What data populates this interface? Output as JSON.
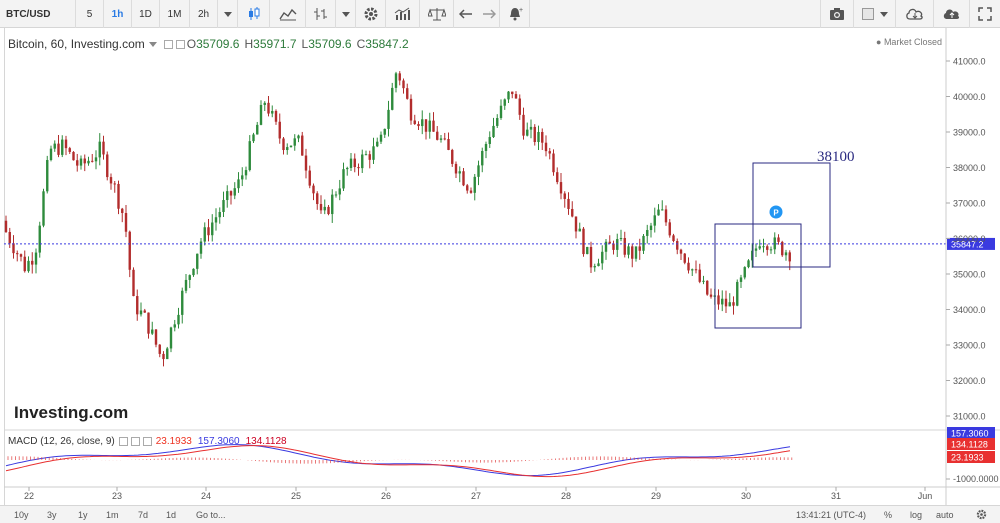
{
  "toolbar": {
    "symbol": "BTC/USD",
    "timeframes": [
      "5",
      "1h",
      "1D",
      "1M",
      "2h"
    ],
    "active_timeframe": "1h",
    "icons": [
      "candles-icon",
      "area-chart-icon",
      "indicators-icon",
      "settings-icon",
      "studies-icon",
      "compare-icon",
      "undo-icon",
      "redo-icon",
      "alert-icon",
      "camera-icon",
      "color-swatch-icon",
      "cloud-download-icon",
      "cloud-upload-icon",
      "fullscreen-icon"
    ]
  },
  "legend": {
    "title": "Bitcoin, 60, Investing.com",
    "o_key": "O",
    "o_val": "35709.6",
    "h_key": "H",
    "h_val": "35971.7",
    "l_key": "L",
    "l_val": "35709.6",
    "c_key": "C",
    "c_val": "35847.2"
  },
  "market_status": "Market Closed",
  "watermark": "Investing.com",
  "annotation_text": "38100",
  "event_marker": "P",
  "price_axis": {
    "ticks": [
      "41000.0",
      "40000.0",
      "39000.0",
      "38000.0",
      "37000.0",
      "36000.0",
      "35000.0",
      "34000.0",
      "33000.0",
      "32000.0",
      "31000.0"
    ],
    "tick_values": [
      41000,
      40000,
      39000,
      38000,
      37000,
      36000,
      35000,
      34000,
      33000,
      32000,
      31000
    ],
    "current_price_label": "35847.2",
    "current_price": 35847.2
  },
  "macd": {
    "label": "MACD (12, 26, close, 9)",
    "val1": "23.1933",
    "val2": "157.3060",
    "val3": "134.1128",
    "axis_tick": "-1000.0000",
    "colors": {
      "macd_line": "#3a3ae0",
      "signal_line": "#e83030",
      "histogram": "#e04040"
    }
  },
  "time_axis": {
    "ticks": [
      "22",
      "23",
      "24",
      "25",
      "26",
      "27",
      "28",
      "29",
      "30",
      "31",
      "Jun"
    ]
  },
  "bottom_bar": {
    "ranges": [
      "10y",
      "3y",
      "1y",
      "1m",
      "7d",
      "1d"
    ],
    "goto": "Go to...",
    "clock": "13:41:21 (UTC-4)",
    "percent": "%",
    "log": "log",
    "auto": "auto"
  },
  "colors": {
    "up": "#2e8b3c",
    "down": "#b22c2c",
    "current_line": "#3a3ae0",
    "accent": "#2a7be4"
  }
}
